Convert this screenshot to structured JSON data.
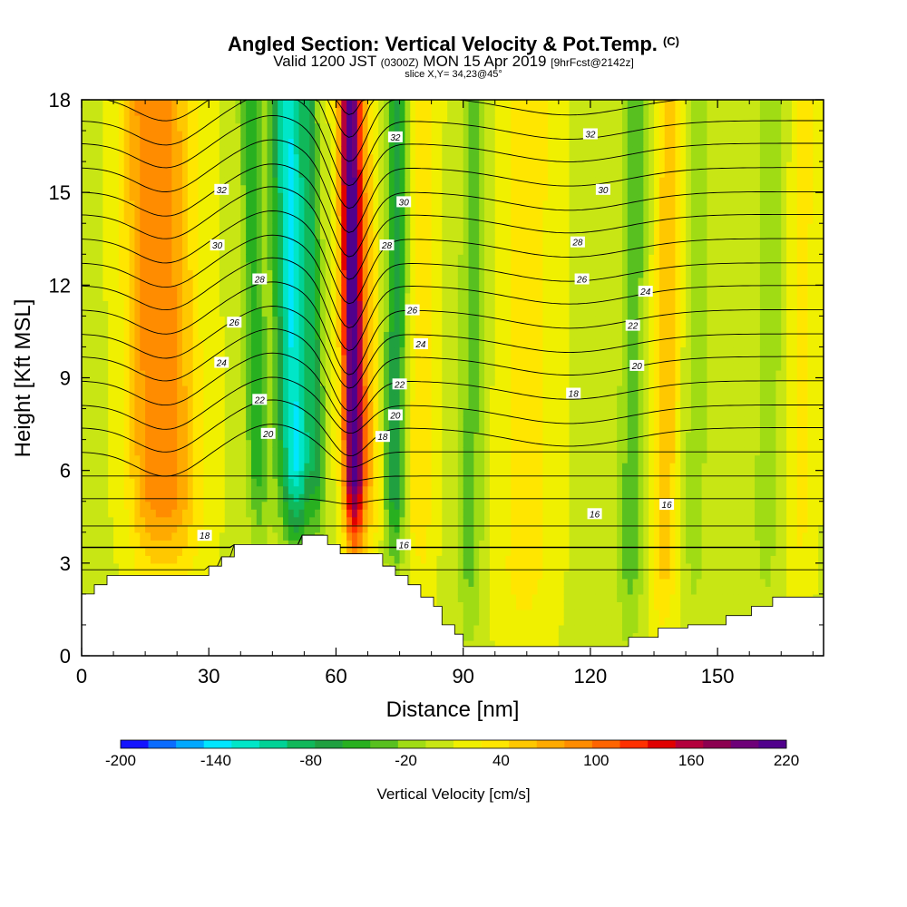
{
  "header": {
    "title": "Angled Section: Vertical Velocity & Pot.Temp.",
    "title_unit": "(C)",
    "valid_prefix": "Valid 1200 JST",
    "valid_z": "(0300Z)",
    "valid_date": "MON 15 Apr 2019",
    "valid_fcst": "[9hrFcst@2142z]",
    "slice": "slice X,Y= 34,23@45°"
  },
  "chart_data": {
    "type": "heatmap",
    "xlabel": "Distance [nm]",
    "ylabel": "Height [Kft MSL]",
    "xlim": [
      0,
      175
    ],
    "ylim": [
      0,
      18
    ],
    "x_ticks": [
      "0",
      "30",
      "60",
      "90",
      "120",
      "150"
    ],
    "x_tick_values": [
      0,
      30,
      60,
      90,
      120,
      150
    ],
    "y_ticks": [
      "0",
      "3",
      "6",
      "9",
      "12",
      "15",
      "18"
    ],
    "y_tick_values": [
      0,
      3,
      6,
      9,
      12,
      15,
      18
    ],
    "grid": false,
    "colorbar": {
      "title": "Vertical Velocity [cm/s]",
      "labels": [
        "-200",
        "-140",
        "-80",
        "-20",
        "40",
        "100",
        "160",
        "220"
      ],
      "label_values": [
        -200,
        -140,
        -80,
        -20,
        40,
        100,
        160,
        220
      ],
      "colors": [
        "#1414ff",
        "#0a6cff",
        "#00a8ff",
        "#00e6ff",
        "#00e6c8",
        "#00d296",
        "#10b85a",
        "#20a040",
        "#28b020",
        "#58c020",
        "#a0dc14",
        "#c8e614",
        "#f0f000",
        "#ffe600",
        "#ffc800",
        "#ffaa00",
        "#ff8c00",
        "#ff6400",
        "#ff3000",
        "#e00000",
        "#b4003c",
        "#8c0050",
        "#6e0078",
        "#50008c"
      ]
    },
    "velocity_features": [
      {
        "x": 20,
        "w": 7,
        "peak": 80
      },
      {
        "x": 14,
        "w": 4,
        "peak": 30
      },
      {
        "x": 41,
        "w": 2.5,
        "peak": -60
      },
      {
        "x": 50,
        "w": 4,
        "peak": -140
      },
      {
        "x": 55,
        "w": 2,
        "peak": -60
      },
      {
        "x": 64,
        "w": 2.5,
        "peak": 210
      },
      {
        "x": 68,
        "w": 2.5,
        "peak": 40
      },
      {
        "x": 74,
        "w": 2.5,
        "peak": -80
      },
      {
        "x": 80,
        "w": 3,
        "peak": 35
      },
      {
        "x": 92,
        "w": 3,
        "peak": -40
      },
      {
        "x": 105,
        "w": 6,
        "peak": 30
      },
      {
        "x": 130,
        "w": 3,
        "peak": -45
      },
      {
        "x": 138,
        "w": 3,
        "peak": 50
      },
      {
        "x": 145,
        "w": 3,
        "peak": -25
      },
      {
        "x": 162,
        "w": 3,
        "peak": -30
      },
      {
        "x": 170,
        "w": 3,
        "peak": 25
      }
    ],
    "isentropes": [
      16,
      18,
      20,
      22,
      24,
      26,
      28,
      30,
      32
    ],
    "isentrope_labels": [
      {
        "text": "32",
        "x": 33,
        "y": 15.1
      },
      {
        "text": "30",
        "x": 32,
        "y": 13.3
      },
      {
        "text": "28",
        "x": 42,
        "y": 12.2
      },
      {
        "text": "26",
        "x": 36,
        "y": 10.8
      },
      {
        "text": "24",
        "x": 33,
        "y": 9.5
      },
      {
        "text": "22",
        "x": 42,
        "y": 8.3
      },
      {
        "text": "20",
        "x": 44,
        "y": 7.2
      },
      {
        "text": "18",
        "x": 29,
        "y": 3.9
      },
      {
        "text": "32",
        "x": 74,
        "y": 16.8
      },
      {
        "text": "30",
        "x": 76,
        "y": 14.7
      },
      {
        "text": "28",
        "x": 72,
        "y": 13.3
      },
      {
        "text": "26",
        "x": 78,
        "y": 11.2
      },
      {
        "text": "24",
        "x": 80,
        "y": 10.1
      },
      {
        "text": "22",
        "x": 75,
        "y": 8.8
      },
      {
        "text": "20",
        "x": 74,
        "y": 7.8
      },
      {
        "text": "18",
        "x": 71,
        "y": 7.1
      },
      {
        "text": "16",
        "x": 76,
        "y": 3.6
      },
      {
        "text": "32",
        "x": 120,
        "y": 16.9
      },
      {
        "text": "30",
        "x": 123,
        "y": 15.1
      },
      {
        "text": "28",
        "x": 117,
        "y": 13.4
      },
      {
        "text": "26",
        "x": 118,
        "y": 12.2
      },
      {
        "text": "24",
        "x": 133,
        "y": 11.8
      },
      {
        "text": "22",
        "x": 130,
        "y": 10.7
      },
      {
        "text": "20",
        "x": 131,
        "y": 9.4
      },
      {
        "text": "18",
        "x": 116,
        "y": 8.5
      },
      {
        "text": "16",
        "x": 121,
        "y": 4.6
      },
      {
        "text": "16",
        "x": 138,
        "y": 4.9
      }
    ],
    "terrain": [
      [
        0,
        2
      ],
      [
        3,
        2
      ],
      [
        3,
        2.3
      ],
      [
        6,
        2.3
      ],
      [
        6,
        2.6
      ],
      [
        30,
        2.6
      ],
      [
        30,
        2.9
      ],
      [
        33,
        2.9
      ],
      [
        33,
        3.2
      ],
      [
        36,
        3.2
      ],
      [
        36,
        3.6
      ],
      [
        52,
        3.6
      ],
      [
        52,
        3.9
      ],
      [
        58,
        3.9
      ],
      [
        58,
        3.6
      ],
      [
        61,
        3.6
      ],
      [
        61,
        3.3
      ],
      [
        71,
        3.3
      ],
      [
        71,
        2.9
      ],
      [
        74,
        2.9
      ],
      [
        74,
        2.6
      ],
      [
        77,
        2.6
      ],
      [
        77,
        2.3
      ],
      [
        80,
        2.3
      ],
      [
        80,
        1.9
      ],
      [
        83,
        1.9
      ],
      [
        83,
        1.6
      ],
      [
        85,
        1.6
      ],
      [
        85,
        1.0
      ],
      [
        88,
        1.0
      ],
      [
        88,
        0.7
      ],
      [
        90,
        0.7
      ],
      [
        90,
        0.3
      ],
      [
        129,
        0.3
      ],
      [
        129,
        0.6
      ],
      [
        136,
        0.6
      ],
      [
        136,
        0.9
      ],
      [
        143,
        0.9
      ],
      [
        143,
        1.0
      ],
      [
        152,
        1.0
      ],
      [
        152,
        1.3
      ],
      [
        158,
        1.3
      ],
      [
        158,
        1.6
      ],
      [
        163,
        1.6
      ],
      [
        163,
        1.9
      ],
      [
        175,
        1.9
      ]
    ]
  }
}
